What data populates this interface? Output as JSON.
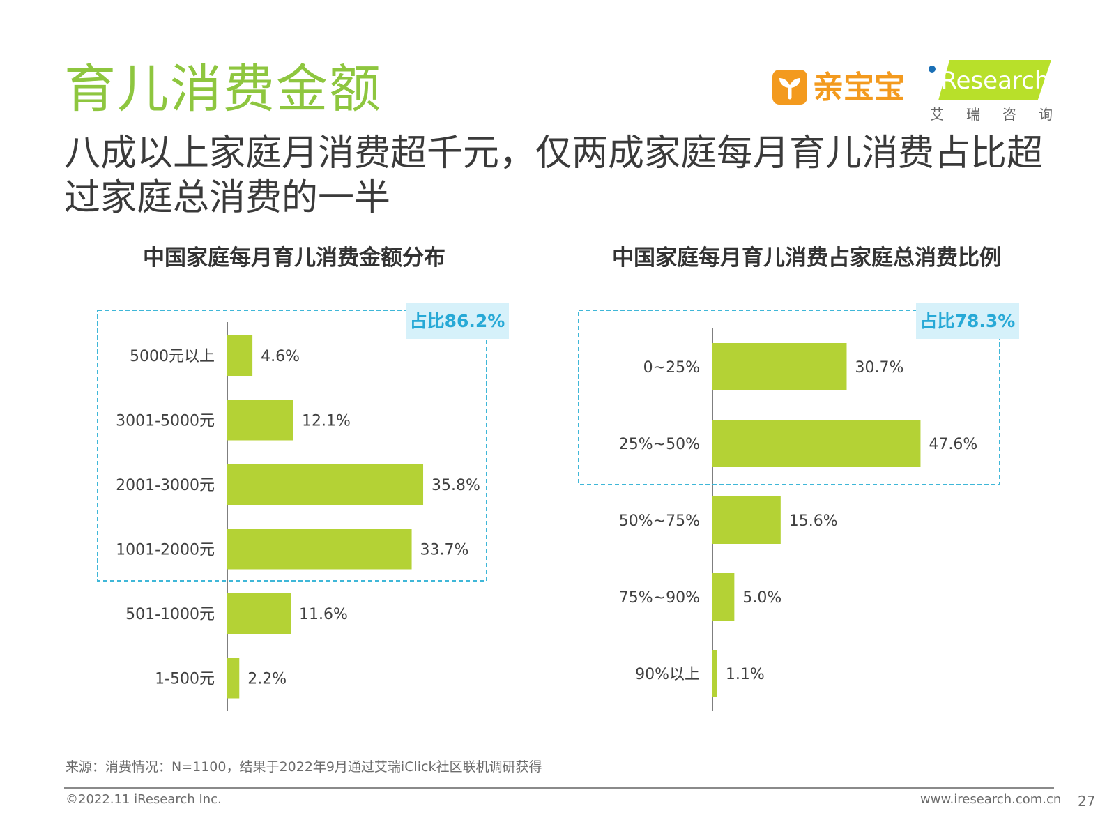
{
  "header": {
    "title": "育儿消费金额",
    "subtitle": "八成以上家庭月消费超千元，仅两成家庭每月育儿消费占比超过家庭总消费的一半"
  },
  "brands": {
    "qinbaobao": "亲宝宝",
    "iresearch": "iResearch",
    "iresearch_cn": "艾瑞咨询"
  },
  "colors": {
    "bar": "#b4d235",
    "title": "#8ec63f",
    "callout_border": "#3fb7d8",
    "callout_bg": "#d6f1fa",
    "callout_text": "#27a9d6"
  },
  "chart_data": [
    {
      "type": "bar",
      "orientation": "horizontal",
      "title": "中国家庭每月育儿消费金额分布",
      "categories": [
        "5000元以上",
        "3001-5000元",
        "2001-3000元",
        "1001-2000元",
        "501-1000元",
        "1-500元"
      ],
      "values": [
        4.6,
        12.1,
        35.8,
        33.7,
        11.6,
        2.2
      ],
      "value_labels": [
        "4.6%",
        "12.1%",
        "35.8%",
        "33.7%",
        "11.6%",
        "2.2%"
      ],
      "unit": "%",
      "xlim": [
        0,
        50
      ],
      "grid": false,
      "callout": {
        "label": "占比86.2%",
        "covers": [
          "5000元以上",
          "3001-5000元",
          "2001-3000元",
          "1001-2000元"
        ]
      }
    },
    {
      "type": "bar",
      "orientation": "horizontal",
      "title": "中国家庭每月育儿消费占家庭总消费比例",
      "categories": [
        "0~25%",
        "25%~50%",
        "50%~75%",
        "75%~90%",
        "90%以上"
      ],
      "values": [
        30.7,
        47.6,
        15.6,
        5.0,
        1.1
      ],
      "value_labels": [
        "30.7%",
        "47.6%",
        "15.6%",
        "5.0%",
        "1.1%"
      ],
      "unit": "%",
      "xlim": [
        0,
        50
      ],
      "grid": false,
      "callout": {
        "label": "占比78.3%",
        "covers": [
          "0~25%",
          "25%~50%"
        ]
      }
    }
  ],
  "footer": {
    "source": "来源：消费情况：N=1100，结果于2022年9月通过艾瑞iClick社区联机调研获得",
    "copyright": "©2022.11 iResearch Inc.",
    "website": "www.iresearch.com.cn",
    "page_number": "27"
  }
}
